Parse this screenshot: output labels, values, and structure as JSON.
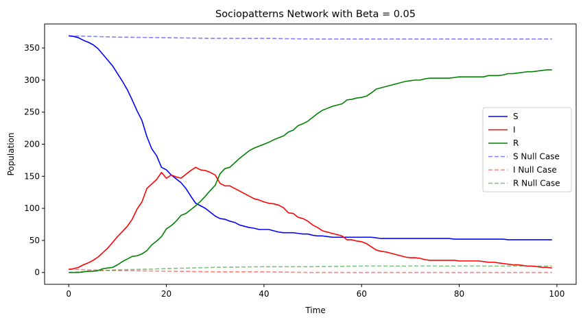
{
  "chart_data": {
    "type": "line",
    "title": "Sociopatterns Network with Beta = 0.05",
    "xlabel": "Time",
    "ylabel": "Population",
    "xlim": [
      -4.95,
      103.95
    ],
    "ylim": [
      -18.45,
      387.45
    ],
    "xticks": [
      0,
      20,
      40,
      60,
      80,
      100
    ],
    "yticks": [
      0,
      50,
      100,
      150,
      200,
      250,
      300,
      350
    ],
    "grid": false,
    "legend_position": "center-right",
    "series": [
      {
        "name": "S",
        "color": "#0000ff",
        "style": "solid",
        "opacity": 1,
        "x": [
          0,
          1,
          2,
          3,
          4,
          5,
          6,
          7,
          8,
          9,
          10,
          11,
          12,
          13,
          14,
          15,
          16,
          17,
          18,
          19,
          20,
          21,
          22,
          23,
          24,
          25,
          26,
          27,
          28,
          29,
          30,
          31,
          32,
          33,
          34,
          35,
          36,
          37,
          38,
          39,
          40,
          41,
          42,
          43,
          44,
          45,
          46,
          47,
          48,
          49,
          50,
          51,
          52,
          53,
          54,
          55,
          56,
          57,
          58,
          59,
          60,
          61,
          62,
          63,
          64,
          65,
          66,
          67,
          68,
          69,
          70,
          71,
          72,
          73,
          74,
          75,
          76,
          77,
          78,
          79,
          80,
          81,
          82,
          83,
          84,
          85,
          86,
          87,
          88,
          89,
          90,
          91,
          92,
          93,
          94,
          95,
          96,
          97,
          98,
          99
        ],
        "values": [
          369,
          368,
          366,
          362,
          359,
          355,
          349,
          340,
          331,
          322,
          310,
          298,
          285,
          269,
          252,
          237,
          212,
          193,
          182,
          164,
          160,
          152,
          146,
          140,
          131,
          119,
          108,
          104,
          100,
          94,
          88,
          84,
          83,
          80,
          78,
          74,
          72,
          70,
          69,
          67,
          67,
          67,
          65,
          63,
          62,
          62,
          62,
          61,
          60,
          60,
          58,
          57,
          57,
          56,
          55,
          55,
          55,
          55,
          55,
          55,
          55,
          55,
          55,
          54,
          53,
          53,
          53,
          53,
          53,
          53,
          53,
          53,
          53,
          53,
          53,
          53,
          53,
          53,
          53,
          52,
          52,
          52,
          52,
          52,
          52,
          52,
          52,
          52,
          52,
          52,
          51,
          51,
          51,
          51,
          51,
          51,
          51,
          51,
          51,
          51
        ]
      },
      {
        "name": "I",
        "color": "#ff0000",
        "style": "solid",
        "opacity": 1,
        "x": [
          0,
          1,
          2,
          3,
          4,
          5,
          6,
          7,
          8,
          9,
          10,
          11,
          12,
          13,
          14,
          15,
          16,
          17,
          18,
          19,
          20,
          21,
          22,
          23,
          24,
          25,
          26,
          27,
          28,
          29,
          30,
          31,
          32,
          33,
          34,
          35,
          36,
          37,
          38,
          39,
          40,
          41,
          42,
          43,
          44,
          45,
          46,
          47,
          48,
          49,
          50,
          51,
          52,
          53,
          54,
          55,
          56,
          57,
          58,
          59,
          60,
          61,
          62,
          63,
          64,
          65,
          66,
          67,
          68,
          69,
          70,
          71,
          72,
          73,
          74,
          75,
          76,
          77,
          78,
          79,
          80,
          81,
          82,
          83,
          84,
          85,
          86,
          87,
          88,
          89,
          90,
          91,
          92,
          93,
          94,
          95,
          96,
          97,
          98,
          99
        ],
        "values": [
          5,
          6,
          8,
          12,
          15,
          19,
          24,
          31,
          38,
          47,
          56,
          64,
          72,
          83,
          99,
          110,
          131,
          138,
          145,
          156,
          147,
          152,
          149,
          147,
          153,
          159,
          164,
          160,
          159,
          156,
          152,
          139,
          135,
          135,
          131,
          127,
          123,
          119,
          115,
          113,
          110,
          108,
          107,
          105,
          101,
          93,
          92,
          86,
          84,
          80,
          74,
          70,
          65,
          63,
          61,
          59,
          57,
          51,
          51,
          49,
          48,
          45,
          40,
          35,
          33,
          32,
          30,
          28,
          26,
          24,
          23,
          23,
          22,
          20,
          19,
          19,
          19,
          19,
          19,
          19,
          18,
          18,
          18,
          18,
          18,
          17,
          16,
          16,
          15,
          14,
          13,
          12,
          12,
          11,
          10,
          10,
          9,
          8,
          8,
          7
        ]
      },
      {
        "name": "R",
        "color": "#008000",
        "style": "solid",
        "opacity": 1,
        "x": [
          0,
          1,
          2,
          3,
          4,
          5,
          6,
          7,
          8,
          9,
          10,
          11,
          12,
          13,
          14,
          15,
          16,
          17,
          18,
          19,
          20,
          21,
          22,
          23,
          24,
          25,
          26,
          27,
          28,
          29,
          30,
          31,
          32,
          33,
          34,
          35,
          36,
          37,
          38,
          39,
          40,
          41,
          42,
          43,
          44,
          45,
          46,
          47,
          48,
          49,
          50,
          51,
          52,
          53,
          54,
          55,
          56,
          57,
          58,
          59,
          60,
          61,
          62,
          63,
          64,
          65,
          66,
          67,
          68,
          69,
          70,
          71,
          72,
          73,
          74,
          75,
          76,
          77,
          78,
          79,
          80,
          81,
          82,
          83,
          84,
          85,
          86,
          87,
          88,
          89,
          90,
          91,
          92,
          93,
          94,
          95,
          96,
          97,
          98,
          99
        ],
        "values": [
          0,
          0,
          0,
          1,
          2,
          2,
          3,
          6,
          7,
          8,
          12,
          17,
          21,
          25,
          26,
          29,
          34,
          43,
          49,
          56,
          68,
          73,
          80,
          89,
          92,
          98,
          104,
          111,
          119,
          128,
          136,
          154,
          162,
          164,
          171,
          178,
          184,
          190,
          194,
          197,
          200,
          203,
          207,
          210,
          213,
          219,
          222,
          229,
          232,
          236,
          242,
          248,
          253,
          256,
          259,
          261,
          263,
          269,
          270,
          272,
          273,
          275,
          280,
          286,
          288,
          290,
          292,
          294,
          296,
          298,
          299,
          300,
          300,
          302,
          303,
          303,
          303,
          303,
          303,
          304,
          305,
          305,
          305,
          305,
          305,
          305,
          307,
          307,
          307,
          308,
          310,
          310,
          311,
          312,
          313,
          313,
          314,
          315,
          316,
          316
        ]
      },
      {
        "name": "S Null Case",
        "color": "#0000ff",
        "style": "dashed",
        "opacity": 0.5,
        "x": [
          0,
          5,
          10,
          20,
          30,
          40,
          50,
          60,
          70,
          80,
          90,
          99
        ],
        "values": [
          369,
          368,
          367,
          366,
          365,
          365,
          364,
          364,
          364,
          364,
          364,
          364
        ]
      },
      {
        "name": "I Null Case",
        "color": "#ff0000",
        "style": "dashed",
        "opacity": 0.5,
        "x": [
          0,
          5,
          10,
          20,
          30,
          40,
          50,
          60,
          70,
          80,
          90,
          99
        ],
        "values": [
          5,
          4,
          3,
          2,
          1,
          1,
          0,
          0,
          0,
          0,
          0,
          0
        ]
      },
      {
        "name": "R Null Case",
        "color": "#008000",
        "style": "dashed",
        "opacity": 0.5,
        "x": [
          0,
          5,
          10,
          20,
          30,
          40,
          50,
          60,
          70,
          80,
          90,
          99
        ],
        "values": [
          0,
          2,
          4,
          6,
          8,
          9,
          9,
          10,
          10,
          10,
          10,
          10
        ]
      }
    ]
  }
}
